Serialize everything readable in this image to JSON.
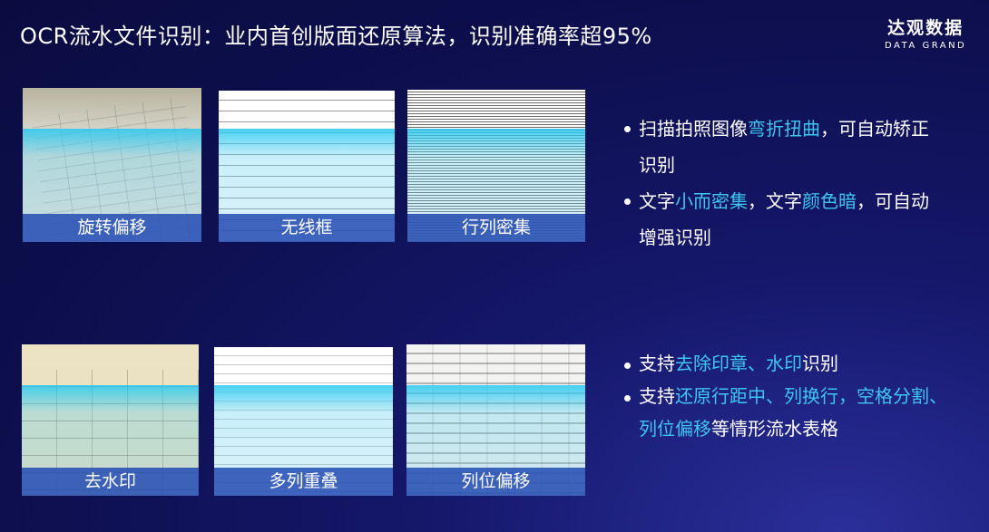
{
  "title": "OCR流水文件识别：业内首创版面还原算法，识别准确率超95%",
  "logo": {
    "cn": "达观数据",
    "en": "DATA GRAND"
  },
  "cards": [
    {
      "label": "旋转偏移"
    },
    {
      "label": "无线框"
    },
    {
      "label": "行列密集"
    },
    {
      "label": "去水印"
    },
    {
      "label": "多列重叠"
    },
    {
      "label": "列位偏移"
    }
  ],
  "bullets_top": [
    {
      "parts": [
        "扫描拍照图像",
        "弯折扭曲",
        "，可自动矫正识别"
      ]
    },
    {
      "parts": [
        "文字",
        "小而密集",
        "，文字",
        "颜色暗",
        "，可自动增强识别"
      ]
    }
  ],
  "bullets_bottom": [
    {
      "parts": [
        "支持",
        "去除印章、水印",
        "识别"
      ]
    },
    {
      "parts": [
        "支持",
        "还原行距中、列换行，空格分割、列位偏移",
        "等情形流水表格"
      ]
    }
  ],
  "colors": {
    "highlight": "#3fc6f0",
    "label_bar": "#2850b4",
    "background": "#0d0f4e"
  }
}
